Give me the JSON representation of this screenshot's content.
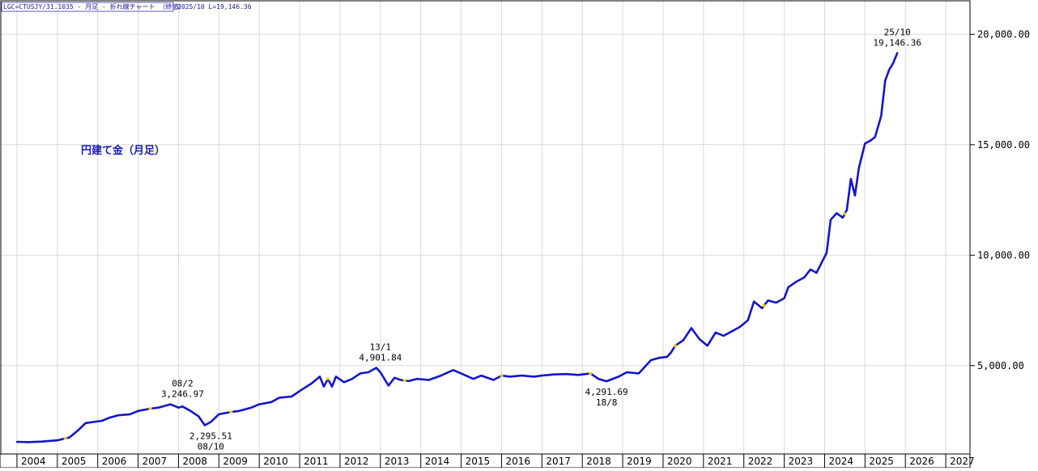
{
  "header": {
    "symbol_text": "LGC=CTUSJY/31.1035 - 月足 - 折れ線チャート （終値）",
    "info_text": "2025/10 L=19,146.36"
  },
  "colors": {
    "line": "#1515c8",
    "grid": "#d9d9d9",
    "frame": "#000000",
    "marker": "#e8d000",
    "title": "#1a1ab4"
  },
  "chart_data": {
    "type": "line",
    "title": "円建て金（月足）",
    "xlabel": "",
    "ylabel": "",
    "x_categories": [
      "2004",
      "2005",
      "2006",
      "2007",
      "2008",
      "2009",
      "2010",
      "2011",
      "2012",
      "2013",
      "2014",
      "2015",
      "2016",
      "2017",
      "2018",
      "2019",
      "2020",
      "2021",
      "2022",
      "2023",
      "2024",
      "2025",
      "2026",
      "2027"
    ],
    "y_ticks": [
      5000,
      10000,
      15000,
      20000
    ],
    "y_tick_labels": [
      "5,000.00",
      "10,000.00",
      "15,000.00",
      "20,000.00"
    ],
    "ylim": [
      1000,
      21000
    ],
    "grid": true,
    "series": [
      {
        "x": [
          2004.0,
          2004.3,
          2004.6,
          2005.0,
          2005.3,
          2005.5,
          2005.7,
          2005.9,
          2006.1,
          2006.3,
          2006.5,
          2006.8,
          2007.0,
          2007.3,
          2007.5,
          2007.8,
          2008.0,
          2008.1,
          2008.3,
          2008.5,
          2008.65,
          2008.8,
          2009.0,
          2009.3,
          2009.5,
          2009.8,
          2010.0,
          2010.3,
          2010.5,
          2010.8,
          2011.0,
          2011.3,
          2011.5,
          2011.6,
          2011.7,
          2011.8,
          2011.9,
          2012.1,
          2012.3,
          2012.5,
          2012.7,
          2012.9,
          2013.0,
          2013.2,
          2013.35,
          2013.5,
          2013.7,
          2013.9,
          2014.2,
          2014.5,
          2014.8,
          2015.0,
          2015.3,
          2015.5,
          2015.8,
          2016.0,
          2016.2,
          2016.5,
          2016.8,
          2017.0,
          2017.3,
          2017.6,
          2017.9,
          2018.2,
          2018.4,
          2018.6,
          2018.9,
          2019.1,
          2019.4,
          2019.7,
          2019.9,
          2020.1,
          2020.2,
          2020.3,
          2020.5,
          2020.7,
          2020.9,
          2021.1,
          2021.3,
          2021.5,
          2021.7,
          2021.9,
          2022.1,
          2022.25,
          2022.45,
          2022.6,
          2022.8,
          2023.0,
          2023.1,
          2023.3,
          2023.5,
          2023.65,
          2023.8,
          2023.95,
          2024.05,
          2024.15,
          2024.3,
          2024.45,
          2024.55,
          2024.65,
          2024.75,
          2024.85,
          2025.0,
          2025.15,
          2025.25,
          2025.4,
          2025.5,
          2025.6,
          2025.7,
          2025.8
        ],
        "values": [
          1550,
          1540,
          1560,
          1620,
          1750,
          2050,
          2400,
          2450,
          2500,
          2650,
          2750,
          2800,
          2950,
          3050,
          3100,
          3250,
          3100,
          3150,
          2950,
          2700,
          2300,
          2450,
          2800,
          2900,
          2950,
          3100,
          3250,
          3350,
          3550,
          3600,
          3850,
          4200,
          4500,
          4050,
          4400,
          4050,
          4500,
          4250,
          4400,
          4650,
          4700,
          4902,
          4700,
          4100,
          4450,
          4350,
          4300,
          4400,
          4350,
          4550,
          4800,
          4650,
          4400,
          4550,
          4350,
          4550,
          4500,
          4550,
          4500,
          4550,
          4600,
          4620,
          4580,
          4650,
          4400,
          4292,
          4500,
          4700,
          4650,
          5250,
          5350,
          5400,
          5600,
          5900,
          6150,
          6700,
          6200,
          5900,
          6500,
          6350,
          6550,
          6750,
          7050,
          7900,
          7600,
          7950,
          7850,
          8050,
          8550,
          8800,
          9000,
          9350,
          9200,
          9750,
          10100,
          11600,
          11900,
          11700,
          12050,
          13450,
          12700,
          13950,
          15050,
          15200,
          15350,
          16300,
          17900,
          18400,
          18700,
          19146
        ]
      }
    ],
    "annotations": [
      {
        "date": "08/2",
        "value_text": "3,246.97",
        "x": 2008.1,
        "y": 3247,
        "position": "above"
      },
      {
        "date": "08/10",
        "value_text": "2,295.51",
        "x": 2008.8,
        "y": 2296,
        "position": "below"
      },
      {
        "date": "13/1",
        "value_text": "4,901.84",
        "x": 2013.0,
        "y": 4902,
        "position": "above"
      },
      {
        "date": "18/8",
        "value_text": "4,291.69",
        "x": 2018.6,
        "y": 4292,
        "position": "below"
      },
      {
        "date": "25/10",
        "value_text": "19,146.36",
        "x": 2025.8,
        "y": 19146,
        "position": "above"
      }
    ],
    "markers_x": [
      2005.2,
      2007.3,
      2009.3,
      2011.7,
      2013.6,
      2016.0,
      2018.2,
      2020.3,
      2022.5,
      2024.5
    ]
  }
}
